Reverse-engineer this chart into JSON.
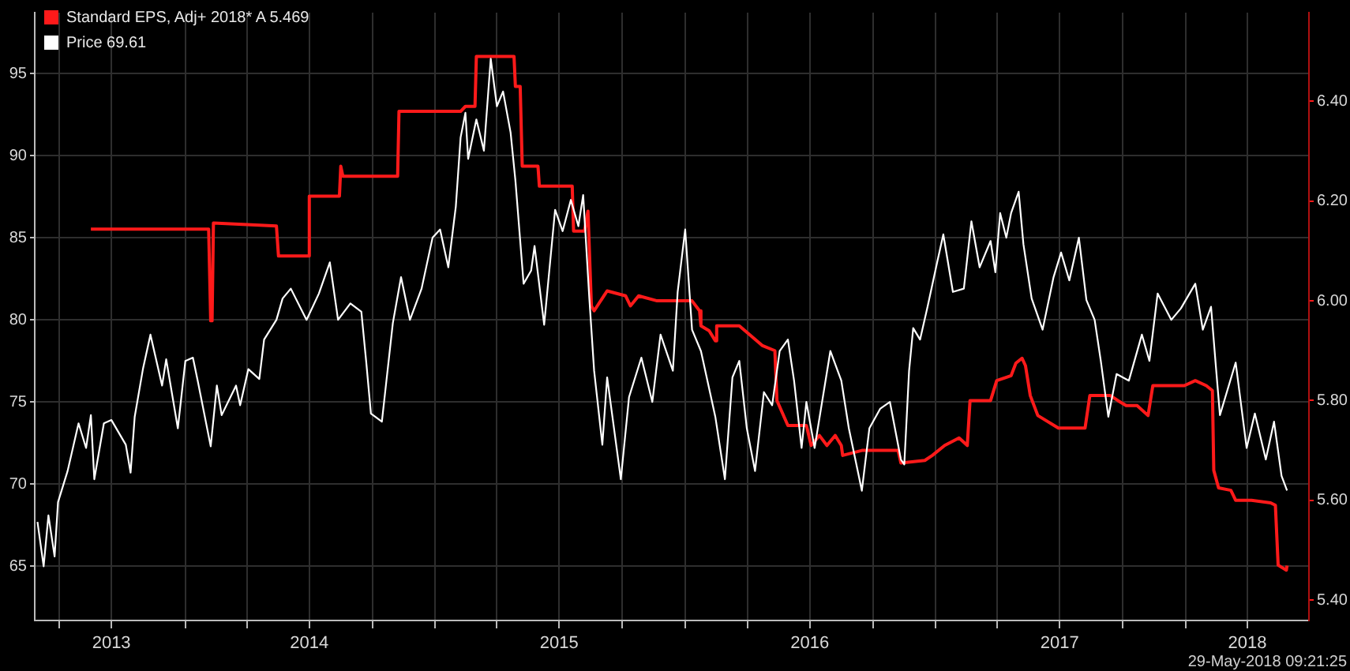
{
  "chart_data": {
    "type": "line",
    "xlim": [
      "2013-05-26",
      "2018-06-30"
    ],
    "xticks": [
      {
        "value": "2013-07-01",
        "label": null
      },
      {
        "value": "2013-09-15",
        "label": "2013"
      },
      {
        "value": "2014-01-01",
        "label": null
      },
      {
        "value": "2014-04-01",
        "label": null
      },
      {
        "value": "2014-07-01",
        "label": "2014"
      },
      {
        "value": "2014-10-01",
        "label": null
      },
      {
        "value": "2015-01-01",
        "label": null
      },
      {
        "value": "2015-04-01",
        "label": null
      },
      {
        "value": "2015-07-01",
        "label": "2015"
      },
      {
        "value": "2015-10-01",
        "label": null
      },
      {
        "value": "2016-01-01",
        "label": null
      },
      {
        "value": "2016-04-01",
        "label": null
      },
      {
        "value": "2016-07-01",
        "label": "2016"
      },
      {
        "value": "2016-10-01",
        "label": null
      },
      {
        "value": "2017-01-01",
        "label": null
      },
      {
        "value": "2017-04-01",
        "label": null
      },
      {
        "value": "2017-07-01",
        "label": "2017"
      },
      {
        "value": "2017-10-01",
        "label": null
      },
      {
        "value": "2018-01-01",
        "label": null
      },
      {
        "value": "2018-04-01",
        "label": "2018"
      }
    ],
    "ylim": [
      61.7,
      98.7
    ],
    "yticks": [
      65,
      70,
      75,
      80,
      85,
      90,
      95
    ],
    "y2lim": [
      5.359,
      6.578
    ],
    "y2ticks": [
      {
        "value": 5.4,
        "label": "5.40"
      },
      {
        "value": 5.6,
        "label": "5.60"
      },
      {
        "value": 5.8,
        "label": "5.80"
      },
      {
        "value": 6.0,
        "label": "6.00"
      },
      {
        "value": 6.2,
        "label": "6.20"
      },
      {
        "value": 6.4,
        "label": "6.40"
      }
    ],
    "grid": true,
    "legend": "top left",
    "annotations": [
      "29-May-2018 09:21:25"
    ],
    "series": [
      {
        "name": "Standard EPS, Adj+ 2018* A 5.469",
        "color": "#ff1a1a",
        "axis": "y2",
        "x": [
          "2013-08-16",
          "2014-02-04",
          "2014-02-07",
          "2014-02-09",
          "2014-02-11",
          "2014-05-14",
          "2014-05-17",
          "2014-06-29",
          "2014-07-01",
          "2014-08-14",
          "2014-08-16",
          "2014-08-19",
          "2014-11-07",
          "2014-11-09",
          "2015-02-07",
          "2015-02-14",
          "2015-02-28",
          "2015-03-02",
          "2015-04-26",
          "2015-04-28",
          "2015-05-05",
          "2015-05-08",
          "2015-05-31",
          "2015-06-02",
          "2015-07-20",
          "2015-07-22",
          "2015-08-07",
          "2015-08-12",
          "2015-08-17",
          "2015-08-21",
          "2015-09-09",
          "2015-10-06",
          "2015-10-13",
          "2015-10-25",
          "2015-11-21",
          "2016-01-11",
          "2016-01-22",
          "2016-01-24",
          "2016-02-05",
          "2016-02-14",
          "2016-02-16",
          "2016-03-20",
          "2016-04-23",
          "2016-05-11",
          "2016-05-14",
          "2016-05-30",
          "2016-06-26",
          "2016-07-03",
          "2016-07-15",
          "2016-07-26",
          "2016-08-07",
          "2016-08-16",
          "2016-08-18",
          "2016-09-15",
          "2016-11-07",
          "2016-11-11",
          "2016-12-16",
          "2016-12-27",
          "2017-01-14",
          "2017-02-04",
          "2017-02-16",
          "2017-02-20",
          "2017-03-22",
          "2017-03-31",
          "2017-04-21",
          "2017-04-28",
          "2017-05-07",
          "2017-05-12",
          "2017-05-19",
          "2017-05-30",
          "2017-06-29",
          "2017-08-07",
          "2017-08-14",
          "2017-09-13",
          "2017-09-24",
          "2017-10-06",
          "2017-10-22",
          "2017-11-07",
          "2017-11-14",
          "2017-12-30",
          "2018-01-15",
          "2018-01-31",
          "2018-02-09",
          "2018-02-11",
          "2018-02-18",
          "2018-03-08",
          "2018-03-15",
          "2018-04-07",
          "2018-05-05",
          "2018-05-12",
          "2018-05-16",
          "2018-05-28",
          "2018-05-29"
        ],
        "values": [
          6.144,
          6.144,
          5.96,
          5.96,
          6.156,
          6.15,
          6.09,
          6.09,
          6.21,
          6.21,
          6.27,
          6.25,
          6.25,
          6.38,
          6.38,
          6.39,
          6.39,
          6.49,
          6.49,
          6.43,
          6.43,
          6.27,
          6.27,
          6.23,
          6.23,
          6.14,
          6.14,
          6.18,
          5.99,
          5.98,
          6.02,
          6.01,
          5.99,
          6.01,
          6.0,
          6.0,
          5.98,
          5.95,
          5.94,
          5.92,
          5.95,
          5.95,
          5.91,
          5.9,
          5.8,
          5.75,
          5.75,
          5.71,
          5.73,
          5.71,
          5.73,
          5.71,
          5.69,
          5.7,
          5.7,
          5.675,
          5.68,
          5.69,
          5.71,
          5.725,
          5.71,
          5.8,
          5.8,
          5.84,
          5.85,
          5.875,
          5.885,
          5.87,
          5.81,
          5.77,
          5.745,
          5.745,
          5.81,
          5.81,
          5.8,
          5.79,
          5.79,
          5.77,
          5.83,
          5.83,
          5.84,
          5.83,
          5.82,
          5.66,
          5.625,
          5.62,
          5.6,
          5.6,
          5.595,
          5.59,
          5.47,
          5.46,
          5.469
        ]
      },
      {
        "name": "Price 69.61",
        "color": "#ffffff",
        "x": [
          "2013-05-30",
          "2013-06-08",
          "2013-06-15",
          "2013-06-24",
          "2013-06-29",
          "2013-07-13",
          "2013-07-29",
          "2013-08-09",
          "2013-08-16",
          "2013-08-21",
          "2013-09-04",
          "2013-09-15",
          "2013-10-06",
          "2013-10-13",
          "2013-10-19",
          "2013-10-31",
          "2013-11-11",
          "2013-11-28",
          "2013-12-04",
          "2013-12-21",
          "2014-01-01",
          "2014-01-12",
          "2014-01-19",
          "2014-02-07",
          "2014-02-16",
          "2014-02-23",
          "2014-03-16",
          "2014-03-22",
          "2014-04-03",
          "2014-04-19",
          "2014-04-26",
          "2014-05-14",
          "2014-05-23",
          "2014-06-04",
          "2014-06-27",
          "2014-07-15",
          "2014-07-31",
          "2014-08-12",
          "2014-08-30",
          "2014-09-15",
          "2014-09-22",
          "2014-09-29",
          "2014-10-15",
          "2014-10-31",
          "2014-11-12",
          "2014-11-25",
          "2014-12-12",
          "2014-12-28",
          "2015-01-08",
          "2015-01-20",
          "2015-01-31",
          "2015-02-07",
          "2015-02-14",
          "2015-02-18",
          "2015-03-02",
          "2015-03-13",
          "2015-03-23",
          "2015-04-01",
          "2015-04-10",
          "2015-04-21",
          "2015-04-28",
          "2015-05-10",
          "2015-05-21",
          "2015-05-26",
          "2015-06-09",
          "2015-06-25",
          "2015-07-06",
          "2015-07-18",
          "2015-07-29",
          "2015-08-05",
          "2015-08-14",
          "2015-08-21",
          "2015-09-02",
          "2015-09-09",
          "2015-09-29",
          "2015-10-11",
          "2015-10-29",
          "2015-11-14",
          "2015-11-26",
          "2015-12-14",
          "2015-12-21",
          "2016-01-01",
          "2016-01-11",
          "2016-01-24",
          "2016-02-14",
          "2016-02-28",
          "2016-03-10",
          "2016-03-20",
          "2016-03-31",
          "2016-04-12",
          "2016-04-25",
          "2016-05-07",
          "2016-05-18",
          "2016-05-30",
          "2016-06-08",
          "2016-06-19",
          "2016-06-26",
          "2016-07-08",
          "2016-07-31",
          "2016-08-16",
          "2016-08-27",
          "2016-09-15",
          "2016-09-26",
          "2016-10-12",
          "2016-10-26",
          "2016-11-11",
          "2016-11-16",
          "2016-11-23",
          "2016-11-29",
          "2016-12-09",
          "2016-12-20",
          "2017-01-03",
          "2017-01-12",
          "2017-01-26",
          "2017-02-11",
          "2017-02-22",
          "2017-03-06",
          "2017-03-22",
          "2017-03-29",
          "2017-04-05",
          "2017-04-14",
          "2017-04-21",
          "2017-05-02",
          "2017-05-09",
          "2017-05-21",
          "2017-06-06",
          "2017-06-22",
          "2017-07-03",
          "2017-07-15",
          "2017-07-29",
          "2017-08-09",
          "2017-08-21",
          "2017-08-30",
          "2017-09-10",
          "2017-09-22",
          "2017-10-10",
          "2017-10-29",
          "2017-11-09",
          "2017-11-21",
          "2017-12-11",
          "2017-12-25",
          "2018-01-15",
          "2018-01-26",
          "2018-02-07",
          "2018-02-14",
          "2018-02-20",
          "2018-03-15",
          "2018-03-31",
          "2018-04-12",
          "2018-04-28",
          "2018-05-10",
          "2018-05-21",
          "2018-05-29"
        ],
        "values": [
          67.7,
          65.0,
          68.1,
          65.6,
          68.9,
          70.8,
          73.7,
          72.2,
          74.2,
          70.3,
          73.7,
          73.9,
          72.4,
          70.7,
          74.1,
          77.0,
          79.1,
          76.0,
          77.6,
          73.4,
          77.5,
          77.7,
          76.3,
          72.3,
          76.0,
          74.2,
          76.0,
          74.8,
          77.0,
          76.4,
          78.8,
          80.0,
          81.3,
          81.9,
          80.0,
          81.6,
          83.5,
          80.0,
          81.0,
          80.5,
          77.5,
          74.3,
          73.8,
          79.8,
          82.6,
          80.0,
          81.9,
          85.0,
          85.5,
          83.2,
          86.9,
          91.1,
          92.6,
          89.8,
          92.2,
          90.3,
          95.9,
          93.0,
          93.9,
          91.4,
          88.5,
          82.2,
          83.0,
          84.5,
          79.7,
          86.7,
          85.4,
          87.3,
          85.7,
          87.6,
          81.3,
          76.9,
          72.4,
          76.5,
          70.3,
          75.3,
          77.7,
          75.0,
          79.1,
          76.9,
          81.7,
          85.5,
          79.4,
          78.1,
          74.1,
          70.3,
          76.5,
          77.5,
          73.4,
          70.8,
          75.6,
          74.8,
          78.1,
          78.8,
          76.3,
          72.2,
          75.0,
          72.2,
          78.1,
          76.3,
          73.4,
          69.6,
          73.4,
          74.6,
          75.0,
          71.5,
          71.2,
          76.9,
          79.5,
          78.8,
          80.8,
          83.5,
          85.2,
          81.7,
          81.9,
          86.0,
          83.2,
          84.8,
          82.9,
          86.5,
          85.0,
          86.5,
          87.8,
          84.6,
          81.3,
          79.4,
          82.6,
          84.1,
          82.4,
          85.0,
          81.2,
          80.0,
          77.5,
          74.1,
          76.7,
          76.3,
          79.1,
          77.5,
          81.6,
          80.0,
          80.7,
          82.2,
          79.4,
          80.8,
          77.2,
          74.2,
          77.4,
          72.2,
          74.3,
          71.5,
          73.8,
          70.5,
          69.61
        ]
      }
    ]
  }
}
